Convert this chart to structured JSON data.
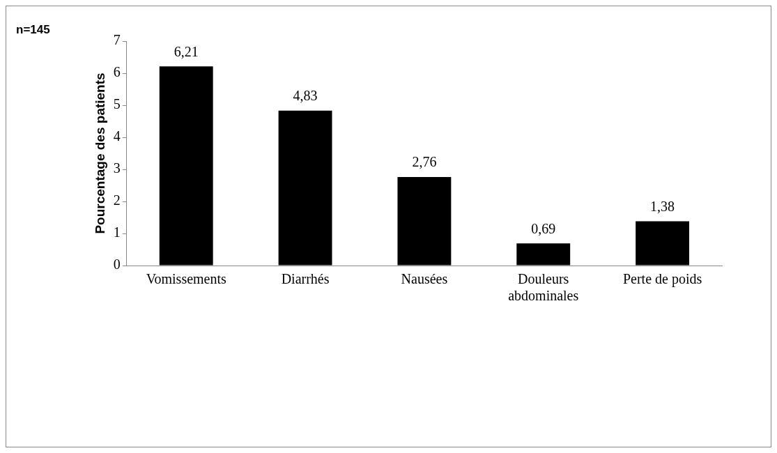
{
  "chart_data": {
    "type": "bar",
    "ylabel": "Pourcentage des patients",
    "annotations": [
      "n=145"
    ],
    "categories": [
      "Vomissements",
      "Diarrhés",
      "Nausées",
      "Douleurs abdominales",
      "Perte de poids"
    ],
    "values": [
      6.21,
      4.83,
      2.76,
      0.69,
      1.38
    ],
    "value_labels": [
      "6,21",
      "4,83",
      "2,76",
      "0,69",
      "1,38"
    ],
    "color": "#000000",
    "ylim": [
      0,
      7
    ],
    "yticks": [
      0,
      1,
      2,
      3,
      4,
      5,
      6,
      7
    ],
    "grid": false,
    "legend": false
  }
}
